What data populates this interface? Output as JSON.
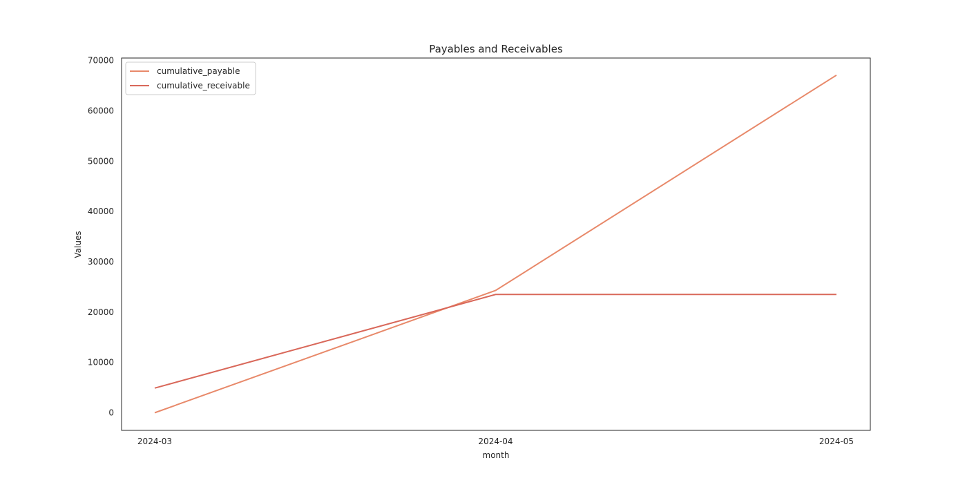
{
  "chart_data": {
    "type": "line",
    "title": "Payables and Receivables",
    "xlabel": "month",
    "ylabel": "Values",
    "categories": [
      "2024-03",
      "2024-04",
      "2024-05"
    ],
    "yticks": [
      0,
      10000,
      20000,
      30000,
      40000,
      50000,
      60000,
      70000
    ],
    "ylim": [
      -3500,
      70500
    ],
    "grid": false,
    "legend_position": "top-left",
    "series": [
      {
        "name": "cumulative_payable",
        "values": [
          0,
          24300,
          67100
        ],
        "color": "#e8896a"
      },
      {
        "name": "cumulative_receivable",
        "values": [
          4900,
          23500,
          23500
        ],
        "color": "#d9685a"
      }
    ]
  }
}
